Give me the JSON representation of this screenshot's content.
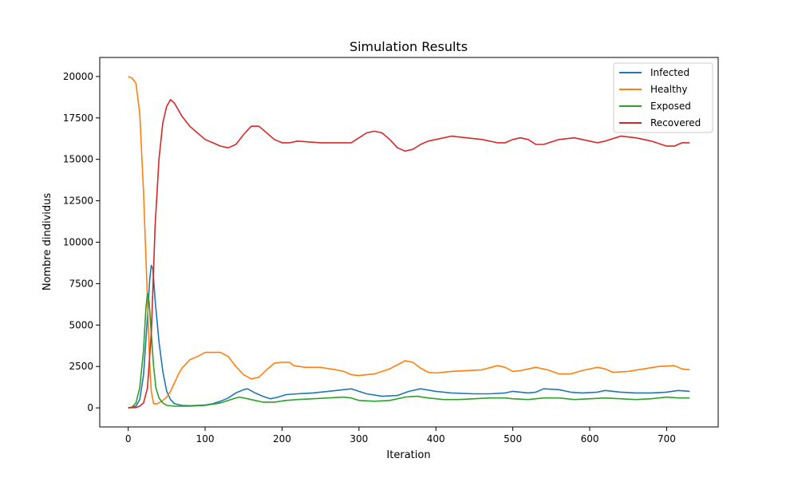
{
  "chart_data": {
    "type": "line",
    "title": "Simulation Results",
    "xlabel": "Iteration",
    "ylabel": "Nombre dindividus",
    "xlim": [
      -37,
      767
    ],
    "ylim": [
      -1150,
      21150
    ],
    "xticks": [
      0,
      100,
      200,
      300,
      400,
      500,
      600,
      700
    ],
    "yticks": [
      0,
      2500,
      5000,
      7500,
      10000,
      12500,
      15000,
      17500,
      20000
    ],
    "grid": false,
    "legend_position": "top-right",
    "series": [
      {
        "name": "Infected",
        "color": "#1f77b4",
        "points": [
          [
            0,
            0
          ],
          [
            10,
            100
          ],
          [
            15,
            500
          ],
          [
            20,
            2000
          ],
          [
            25,
            5500
          ],
          [
            28,
            7800
          ],
          [
            30,
            8600
          ],
          [
            32,
            8400
          ],
          [
            35,
            6500
          ],
          [
            40,
            4000
          ],
          [
            45,
            2200
          ],
          [
            50,
            1000
          ],
          [
            55,
            500
          ],
          [
            60,
            250
          ],
          [
            70,
            150
          ],
          [
            80,
            130
          ],
          [
            100,
            170
          ],
          [
            110,
            250
          ],
          [
            120,
            400
          ],
          [
            130,
            600
          ],
          [
            140,
            900
          ],
          [
            150,
            1100
          ],
          [
            155,
            1150
          ],
          [
            165,
            900
          ],
          [
            175,
            700
          ],
          [
            185,
            550
          ],
          [
            195,
            650
          ],
          [
            205,
            800
          ],
          [
            220,
            850
          ],
          [
            240,
            900
          ],
          [
            260,
            1000
          ],
          [
            280,
            1100
          ],
          [
            290,
            1150
          ],
          [
            300,
            1000
          ],
          [
            310,
            850
          ],
          [
            330,
            700
          ],
          [
            350,
            750
          ],
          [
            365,
            1000
          ],
          [
            380,
            1150
          ],
          [
            400,
            1000
          ],
          [
            420,
            900
          ],
          [
            450,
            850
          ],
          [
            470,
            850
          ],
          [
            490,
            900
          ],
          [
            500,
            1000
          ],
          [
            520,
            900
          ],
          [
            530,
            950
          ],
          [
            540,
            1150
          ],
          [
            560,
            1100
          ],
          [
            575,
            950
          ],
          [
            590,
            900
          ],
          [
            610,
            950
          ],
          [
            620,
            1050
          ],
          [
            640,
            950
          ],
          [
            660,
            900
          ],
          [
            680,
            900
          ],
          [
            700,
            950
          ],
          [
            715,
            1050
          ],
          [
            730,
            1000
          ]
        ]
      },
      {
        "name": "Healthy",
        "color": "#ff7f0e",
        "points": [
          [
            0,
            20000
          ],
          [
            5,
            19900
          ],
          [
            10,
            19600
          ],
          [
            15,
            17800
          ],
          [
            20,
            13000
          ],
          [
            25,
            6500
          ],
          [
            28,
            2500
          ],
          [
            30,
            1000
          ],
          [
            33,
            250
          ],
          [
            38,
            250
          ],
          [
            45,
            450
          ],
          [
            50,
            650
          ],
          [
            55,
            1000
          ],
          [
            60,
            1500
          ],
          [
            65,
            2000
          ],
          [
            70,
            2400
          ],
          [
            80,
            2900
          ],
          [
            90,
            3100
          ],
          [
            100,
            3350
          ],
          [
            110,
            3350
          ],
          [
            120,
            3350
          ],
          [
            130,
            3100
          ],
          [
            140,
            2500
          ],
          [
            150,
            2000
          ],
          [
            160,
            1750
          ],
          [
            170,
            1850
          ],
          [
            180,
            2300
          ],
          [
            190,
            2700
          ],
          [
            200,
            2750
          ],
          [
            210,
            2750
          ],
          [
            215,
            2550
          ],
          [
            230,
            2450
          ],
          [
            250,
            2450
          ],
          [
            270,
            2300
          ],
          [
            280,
            2200
          ],
          [
            290,
            2000
          ],
          [
            300,
            1950
          ],
          [
            320,
            2050
          ],
          [
            340,
            2350
          ],
          [
            360,
            2850
          ],
          [
            370,
            2750
          ],
          [
            380,
            2400
          ],
          [
            390,
            2150
          ],
          [
            400,
            2100
          ],
          [
            420,
            2200
          ],
          [
            440,
            2250
          ],
          [
            460,
            2300
          ],
          [
            480,
            2550
          ],
          [
            490,
            2450
          ],
          [
            500,
            2200
          ],
          [
            510,
            2250
          ],
          [
            520,
            2350
          ],
          [
            530,
            2450
          ],
          [
            545,
            2300
          ],
          [
            560,
            2050
          ],
          [
            575,
            2050
          ],
          [
            590,
            2250
          ],
          [
            610,
            2450
          ],
          [
            620,
            2350
          ],
          [
            630,
            2150
          ],
          [
            650,
            2200
          ],
          [
            670,
            2350
          ],
          [
            690,
            2500
          ],
          [
            710,
            2550
          ],
          [
            720,
            2350
          ],
          [
            730,
            2300
          ]
        ]
      },
      {
        "name": "Exposed",
        "color": "#2ca02c",
        "points": [
          [
            0,
            0
          ],
          [
            5,
            50
          ],
          [
            10,
            300
          ],
          [
            15,
            1200
          ],
          [
            20,
            3500
          ],
          [
            23,
            6000
          ],
          [
            25,
            6900
          ],
          [
            27,
            6500
          ],
          [
            30,
            4500
          ],
          [
            33,
            2500
          ],
          [
            36,
            1200
          ],
          [
            40,
            600
          ],
          [
            45,
            300
          ],
          [
            50,
            150
          ],
          [
            60,
            100
          ],
          [
            80,
            100
          ],
          [
            100,
            150
          ],
          [
            120,
            300
          ],
          [
            130,
            450
          ],
          [
            140,
            600
          ],
          [
            145,
            650
          ],
          [
            155,
            550
          ],
          [
            165,
            450
          ],
          [
            175,
            350
          ],
          [
            190,
            350
          ],
          [
            205,
            450
          ],
          [
            220,
            500
          ],
          [
            240,
            550
          ],
          [
            260,
            600
          ],
          [
            280,
            650
          ],
          [
            290,
            600
          ],
          [
            300,
            450
          ],
          [
            320,
            400
          ],
          [
            340,
            450
          ],
          [
            360,
            650
          ],
          [
            375,
            700
          ],
          [
            390,
            600
          ],
          [
            410,
            500
          ],
          [
            430,
            500
          ],
          [
            450,
            550
          ],
          [
            470,
            600
          ],
          [
            490,
            600
          ],
          [
            500,
            550
          ],
          [
            520,
            500
          ],
          [
            540,
            600
          ],
          [
            560,
            600
          ],
          [
            580,
            500
          ],
          [
            600,
            550
          ],
          [
            620,
            600
          ],
          [
            640,
            550
          ],
          [
            660,
            500
          ],
          [
            680,
            550
          ],
          [
            700,
            650
          ],
          [
            715,
            600
          ],
          [
            730,
            600
          ]
        ]
      },
      {
        "name": "Recovered",
        "color": "#d62728",
        "points": [
          [
            0,
            0
          ],
          [
            10,
            20
          ],
          [
            15,
            100
          ],
          [
            20,
            300
          ],
          [
            25,
            1200
          ],
          [
            30,
            4500
          ],
          [
            35,
            11000
          ],
          [
            40,
            15000
          ],
          [
            45,
            17200
          ],
          [
            50,
            18200
          ],
          [
            55,
            18600
          ],
          [
            60,
            18400
          ],
          [
            70,
            17600
          ],
          [
            80,
            17000
          ],
          [
            90,
            16600
          ],
          [
            100,
            16200
          ],
          [
            110,
            16000
          ],
          [
            120,
            15800
          ],
          [
            130,
            15700
          ],
          [
            140,
            15900
          ],
          [
            150,
            16500
          ],
          [
            160,
            17000
          ],
          [
            170,
            17000
          ],
          [
            180,
            16600
          ],
          [
            190,
            16200
          ],
          [
            200,
            16000
          ],
          [
            210,
            16000
          ],
          [
            220,
            16100
          ],
          [
            250,
            16000
          ],
          [
            270,
            16000
          ],
          [
            290,
            16000
          ],
          [
            300,
            16300
          ],
          [
            310,
            16600
          ],
          [
            320,
            16700
          ],
          [
            330,
            16600
          ],
          [
            340,
            16200
          ],
          [
            350,
            15700
          ],
          [
            360,
            15500
          ],
          [
            370,
            15600
          ],
          [
            380,
            15900
          ],
          [
            390,
            16100
          ],
          [
            400,
            16200
          ],
          [
            420,
            16400
          ],
          [
            440,
            16300
          ],
          [
            460,
            16200
          ],
          [
            480,
            16000
          ],
          [
            490,
            16000
          ],
          [
            500,
            16200
          ],
          [
            510,
            16300
          ],
          [
            520,
            16200
          ],
          [
            530,
            15900
          ],
          [
            540,
            15900
          ],
          [
            560,
            16200
          ],
          [
            580,
            16300
          ],
          [
            600,
            16100
          ],
          [
            610,
            16000
          ],
          [
            620,
            16100
          ],
          [
            640,
            16400
          ],
          [
            660,
            16300
          ],
          [
            680,
            16100
          ],
          [
            700,
            15800
          ],
          [
            710,
            15800
          ],
          [
            720,
            16000
          ],
          [
            730,
            16000
          ]
        ]
      }
    ]
  }
}
